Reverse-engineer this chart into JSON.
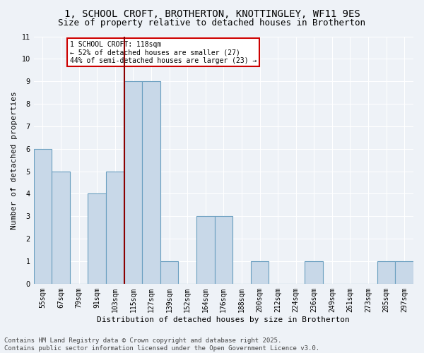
{
  "title": "1, SCHOOL CROFT, BROTHERTON, KNOTTINGLEY, WF11 9ES",
  "subtitle": "Size of property relative to detached houses in Brotherton",
  "xlabel": "Distribution of detached houses by size in Brotherton",
  "ylabel": "Number of detached properties",
  "footer_line1": "Contains HM Land Registry data © Crown copyright and database right 2025.",
  "footer_line2": "Contains public sector information licensed under the Open Government Licence v3.0.",
  "categories": [
    "55sqm",
    "67sqm",
    "79sqm",
    "91sqm",
    "103sqm",
    "115sqm",
    "127sqm",
    "139sqm",
    "152sqm",
    "164sqm",
    "176sqm",
    "188sqm",
    "200sqm",
    "212sqm",
    "224sqm",
    "236sqm",
    "249sqm",
    "261sqm",
    "273sqm",
    "285sqm",
    "297sqm"
  ],
  "values": [
    6,
    5,
    0,
    4,
    5,
    9,
    9,
    1,
    0,
    3,
    3,
    0,
    1,
    0,
    0,
    1,
    0,
    0,
    0,
    1,
    1
  ],
  "bar_color": "#c8d8e8",
  "bar_edge_color": "#6a9fc0",
  "highlight_index": 5,
  "highlight_line_color": "#8b0000",
  "annotation_text": "1 SCHOOL CROFT: 118sqm\n← 52% of detached houses are smaller (27)\n44% of semi-detached houses are larger (23) →",
  "annotation_box_color": "#ffffff",
  "annotation_box_edge_color": "#cc0000",
  "ylim": [
    0,
    11
  ],
  "yticks": [
    0,
    1,
    2,
    3,
    4,
    5,
    6,
    7,
    8,
    9,
    10,
    11
  ],
  "bg_color": "#eef2f7",
  "grid_color": "#ffffff",
  "title_fontsize": 10,
  "subtitle_fontsize": 9,
  "axis_label_fontsize": 8,
  "tick_fontsize": 7,
  "annotation_fontsize": 7,
  "footer_fontsize": 6.5
}
